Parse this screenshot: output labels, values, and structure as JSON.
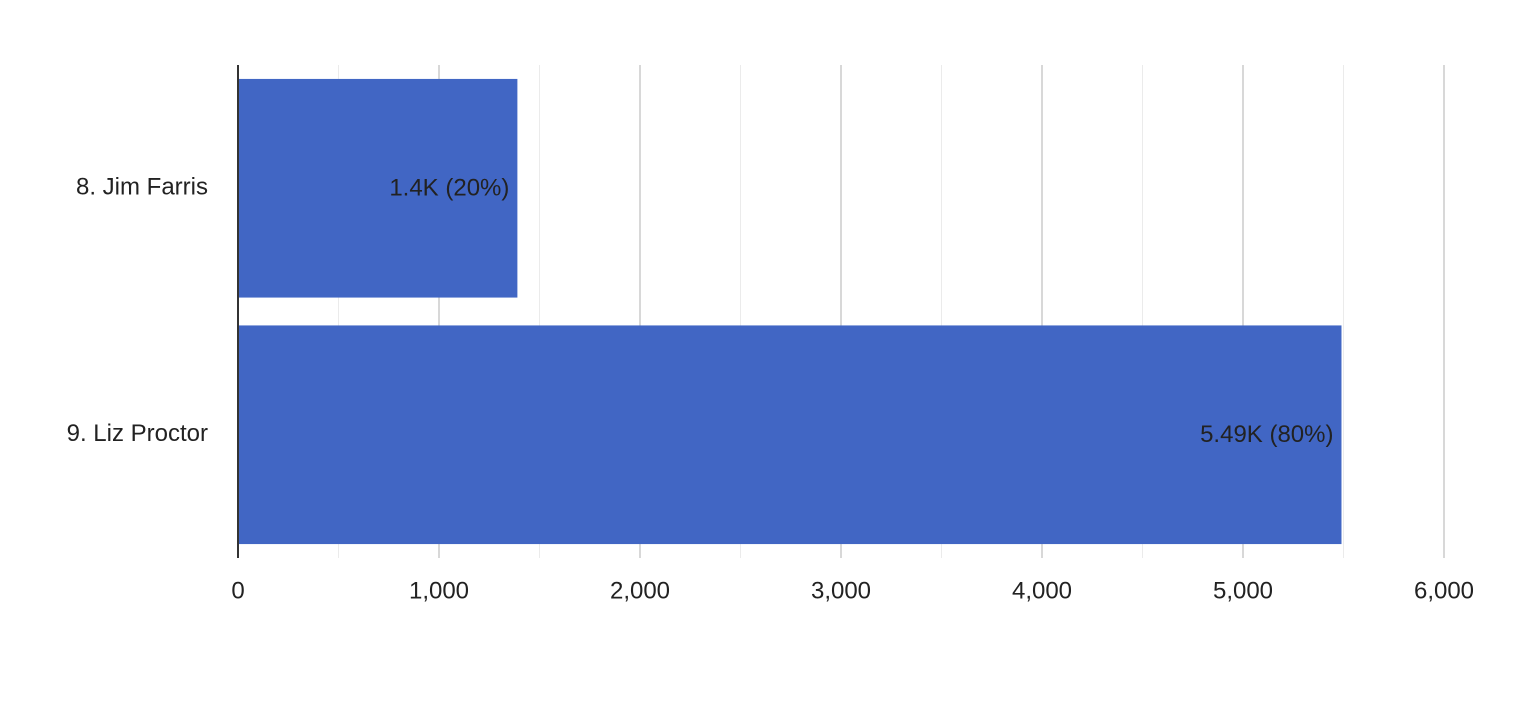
{
  "chart_data": {
    "type": "hbar",
    "categories": [
      "8. Jim Farris",
      "9. Liz Proctor"
    ],
    "values": [
      1390,
      5490
    ],
    "value_labels": [
      "1.4K (20%)",
      "5.49K (80%)"
    ],
    "color": "#4166c4",
    "xlim": [
      0,
      6000
    ],
    "xticks": [
      0,
      {
        "value": 1000,
        "label": "1,000"
      },
      {
        "value": 2000,
        "label": "2,000"
      },
      {
        "value": 3000,
        "label": "3,000"
      },
      {
        "value": 4000,
        "label": "4,000"
      },
      {
        "value": 5000,
        "label": "5,000"
      },
      {
        "value": 6000,
        "label": "6,000"
      }
    ],
    "minor_xticks": [
      500,
      1500,
      2500,
      3500,
      4500,
      5500
    ],
    "grid": true
  }
}
